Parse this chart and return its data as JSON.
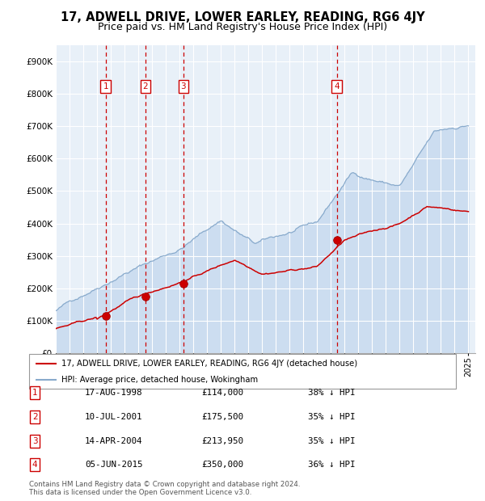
{
  "title": "17, ADWELL DRIVE, LOWER EARLEY, READING, RG6 4JY",
  "subtitle": "Price paid vs. HM Land Registry's House Price Index (HPI)",
  "sales": [
    {
      "num": 1,
      "date": "17-AUG-1998",
      "year": 1998.625,
      "price": 114000,
      "price_str": "£114,000",
      "pct": "38% ↓ HPI"
    },
    {
      "num": 2,
      "date": "10-JUL-2001",
      "year": 2001.525,
      "price": 175500,
      "price_str": "£175,500",
      "pct": "35% ↓ HPI"
    },
    {
      "num": 3,
      "date": "14-APR-2004",
      "year": 2004.283,
      "price": 213950,
      "price_str": "£213,950",
      "pct": "35% ↓ HPI"
    },
    {
      "num": 4,
      "date": "05-JUN-2015",
      "year": 2015.425,
      "price": 350000,
      "price_str": "£350,000",
      "pct": "36% ↓ HPI"
    }
  ],
  "red_line_color": "#cc0000",
  "blue_line_color": "#88aacc",
  "blue_fill_color": "#ccddf0",
  "vline_color": "#cc0000",
  "marker_color": "#cc0000",
  "ylim": [
    0,
    950000
  ],
  "xlim_start": 1995,
  "xlim_end": 2025.5,
  "yticks": [
    0,
    100000,
    200000,
    300000,
    400000,
    500000,
    600000,
    700000,
    800000,
    900000
  ],
  "ytick_labels": [
    "£0",
    "£100K",
    "£200K",
    "£300K",
    "£400K",
    "£500K",
    "£600K",
    "£700K",
    "£800K",
    "£900K"
  ],
  "legend_line1": "17, ADWELL DRIVE, LOWER EARLEY, READING, RG6 4JY (detached house)",
  "legend_line2": "HPI: Average price, detached house, Wokingham",
  "footer_line1": "Contains HM Land Registry data © Crown copyright and database right 2024.",
  "footer_line2": "This data is licensed under the Open Government Licence v3.0.",
  "background_color": "#ffffff",
  "plot_bg_color": "#e8f0f8",
  "grid_color": "#ffffff",
  "title_fontsize": 10.5,
  "subtitle_fontsize": 9
}
